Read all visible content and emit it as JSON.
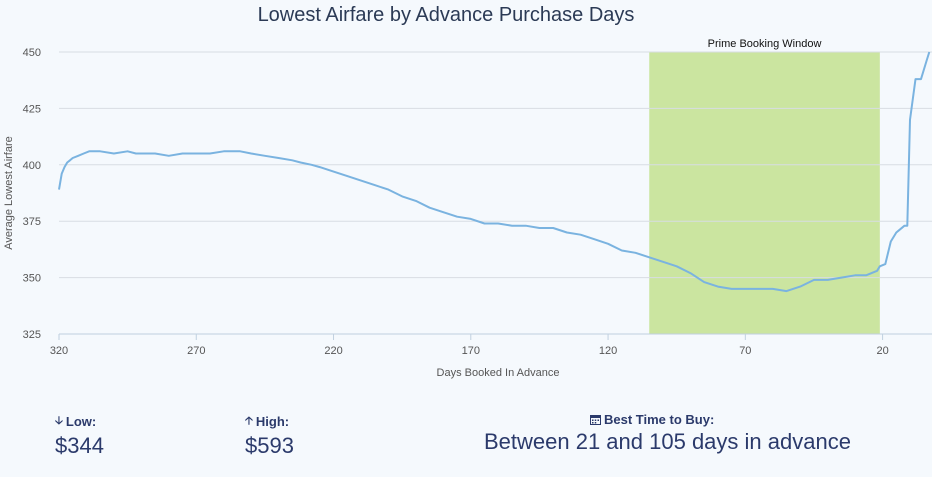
{
  "chart_data": {
    "type": "line",
    "title": "Lowest Airfare by Advance Purchase Days",
    "xlabel": "Days Booked In Advance",
    "ylabel": "Average Lowest Airfare",
    "xlim": [
      320,
      2
    ],
    "ylim": [
      325,
      450
    ],
    "xticks": [
      320,
      270,
      220,
      170,
      120,
      70,
      20
    ],
    "yticks": [
      325,
      350,
      375,
      400,
      425,
      450
    ],
    "band": {
      "label": "Prime Booking Window",
      "x_from": 105,
      "x_to": 21,
      "color": "#cbe5a0"
    },
    "line_color": "#7ab3e0",
    "series": [
      {
        "x": [
          320,
          319,
          318,
          317,
          316,
          315,
          313,
          311,
          309,
          307,
          305,
          300,
          295,
          292,
          290,
          287,
          285,
          280,
          275,
          271,
          270,
          268,
          265,
          260,
          256,
          254,
          250,
          245,
          240,
          235,
          232,
          228,
          225,
          220,
          215,
          210,
          205,
          200,
          195,
          190,
          185,
          180,
          175,
          170,
          165,
          160,
          155,
          150,
          145,
          140,
          135,
          130,
          125,
          120,
          115,
          110,
          105,
          100,
          95,
          90,
          85,
          80,
          75,
          70,
          65,
          60,
          55,
          50,
          45,
          40,
          35,
          30,
          26,
          22,
          21,
          19,
          17,
          15,
          14,
          12,
          11,
          10,
          8,
          6,
          4,
          3
        ],
        "y": [
          389,
          396,
          399,
          401,
          402,
          403,
          404,
          405,
          406,
          406,
          406,
          405,
          406,
          405,
          405,
          405,
          405,
          404,
          405,
          405,
          405,
          405,
          405,
          406,
          406,
          406,
          405,
          404,
          403,
          402,
          401,
          400,
          399,
          397,
          395,
          393,
          391,
          389,
          386,
          384,
          381,
          379,
          377,
          376,
          374,
          374,
          373,
          373,
          372,
          372,
          370,
          369,
          367,
          365,
          362,
          361,
          359,
          357,
          355,
          352,
          348,
          346,
          345,
          345,
          345,
          345,
          344,
          346,
          349,
          349,
          350,
          351,
          351,
          353,
          355,
          356,
          366,
          370,
          371,
          373,
          373,
          420,
          438,
          438,
          446,
          450
        ]
      }
    ]
  },
  "stats": {
    "low_label": "Low:",
    "low_value": "$344",
    "high_label": "High:",
    "high_value": "$593",
    "best_label": "Best Time to Buy:",
    "best_value": "Between 21 and 105 days in advance",
    "low_icon": "arrow-down-icon",
    "high_icon": "arrow-up-icon",
    "best_icon": "calendar-icon"
  }
}
